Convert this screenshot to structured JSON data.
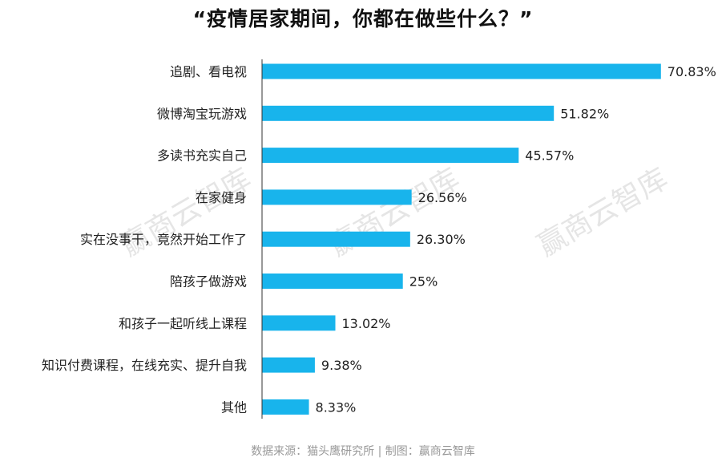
{
  "chart_data": {
    "type": "bar",
    "orientation": "horizontal",
    "title": "“疫情居家期间，你都在做些什么？”",
    "categories": [
      "追剧、看电视",
      "微博淘宝玩游戏",
      "多读书充实自己",
      "在家健身",
      "实在没事干，竟然开始工作了",
      "陪孩子做游戏",
      "和孩子一起听线上课程",
      "知识付费课程，在线充实、提升自我",
      "其他"
    ],
    "values": [
      70.83,
      51.82,
      45.57,
      26.56,
      26.3,
      25,
      13.02,
      9.38,
      8.33
    ],
    "value_labels": [
      "70.83%",
      "51.82%",
      "45.57%",
      "26.56%",
      "26.30%",
      "25%",
      "13.02%",
      "9.38%",
      "8.33%"
    ],
    "xlim": [
      0,
      71
    ],
    "grid": false,
    "legend": "none",
    "bar_color": "#18b4ec"
  },
  "watermark": "赢商云智库",
  "source": "数据来源：猫头鹰研究所 | 制图：赢商云智库"
}
